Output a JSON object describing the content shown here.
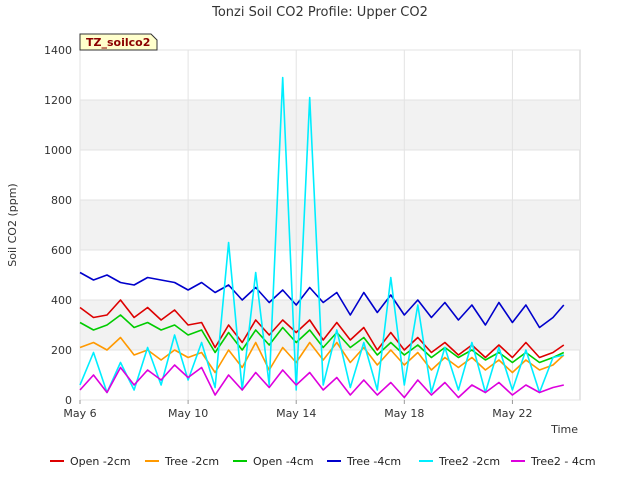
{
  "chart_data": {
    "type": "line",
    "title": "Tonzi Soil CO2 Profile: Upper CO2",
    "xlabel": "Time",
    "ylabel": "Soil CO2 (ppm)",
    "ylim": [
      0,
      1400
    ],
    "xlim": [
      6,
      24.5
    ],
    "yticks": [
      0,
      200,
      400,
      600,
      800,
      1000,
      1200,
      1400
    ],
    "xticks": [
      {
        "label": "May 6",
        "day": 6
      },
      {
        "label": "May 10",
        "day": 10
      },
      {
        "label": "May 14",
        "day": 14
      },
      {
        "label": "May 18",
        "day": 18
      },
      {
        "label": "May 22",
        "day": 22
      }
    ],
    "annotation": "TZ_soilco2",
    "grid": true,
    "legend_position": "bottom",
    "x_days": [
      6.0,
      6.5,
      7.0,
      7.5,
      8.0,
      8.5,
      9.0,
      9.5,
      10.0,
      10.5,
      11.0,
      11.5,
      12.0,
      12.5,
      13.0,
      13.5,
      14.0,
      14.5,
      15.0,
      15.5,
      16.0,
      16.5,
      17.0,
      17.5,
      18.0,
      18.5,
      19.0,
      19.5,
      20.0,
      20.5,
      21.0,
      21.5,
      22.0,
      22.5,
      23.0,
      23.5,
      23.9
    ],
    "series": [
      {
        "name": "Open -2cm",
        "color": "#dd0000",
        "values": [
          370,
          330,
          340,
          400,
          330,
          370,
          320,
          360,
          300,
          310,
          210,
          300,
          230,
          320,
          260,
          320,
          270,
          320,
          240,
          310,
          240,
          290,
          200,
          270,
          200,
          250,
          190,
          230,
          180,
          220,
          170,
          220,
          170,
          230,
          170,
          190,
          220
        ]
      },
      {
        "name": "Tree -2cm",
        "color": "#ff9900",
        "values": [
          210,
          230,
          200,
          250,
          180,
          200,
          160,
          200,
          170,
          190,
          110,
          200,
          130,
          230,
          120,
          210,
          150,
          230,
          160,
          230,
          150,
          210,
          140,
          200,
          140,
          190,
          120,
          170,
          130,
          170,
          120,
          160,
          110,
          160,
          120,
          140,
          180
        ]
      },
      {
        "name": "Open -4cm",
        "color": "#00cc00",
        "values": [
          310,
          280,
          300,
          340,
          290,
          310,
          280,
          300,
          260,
          280,
          190,
          270,
          200,
          280,
          220,
          290,
          230,
          280,
          210,
          270,
          210,
          250,
          180,
          230,
          180,
          220,
          170,
          210,
          170,
          200,
          160,
          190,
          150,
          190,
          150,
          170,
          190
        ]
      },
      {
        "name": "Tree -4cm",
        "color": "#0000cc",
        "values": [
          510,
          480,
          500,
          470,
          460,
          490,
          480,
          470,
          440,
          470,
          430,
          460,
          400,
          450,
          390,
          440,
          380,
          450,
          390,
          430,
          340,
          430,
          350,
          420,
          340,
          400,
          330,
          390,
          320,
          380,
          300,
          390,
          310,
          380,
          290,
          330,
          380
        ]
      },
      {
        "name": "Tree2 -2cm",
        "color": "#00eeff",
        "values": [
          60,
          190,
          30,
          150,
          40,
          210,
          60,
          260,
          80,
          230,
          50,
          630,
          40,
          510,
          60,
          1290,
          40,
          1210,
          60,
          280,
          50,
          230,
          40,
          490,
          60,
          380,
          30,
          210,
          40,
          230,
          30,
          210,
          40,
          200,
          30,
          170,
          180
        ]
      },
      {
        "name": "Tree2 - 4cm",
        "color": "#dd00dd",
        "values": [
          40,
          100,
          30,
          130,
          60,
          120,
          80,
          140,
          90,
          130,
          20,
          100,
          40,
          110,
          50,
          120,
          60,
          110,
          40,
          90,
          20,
          80,
          20,
          70,
          10,
          80,
          20,
          70,
          10,
          60,
          30,
          70,
          20,
          60,
          30,
          50,
          60
        ]
      }
    ]
  }
}
